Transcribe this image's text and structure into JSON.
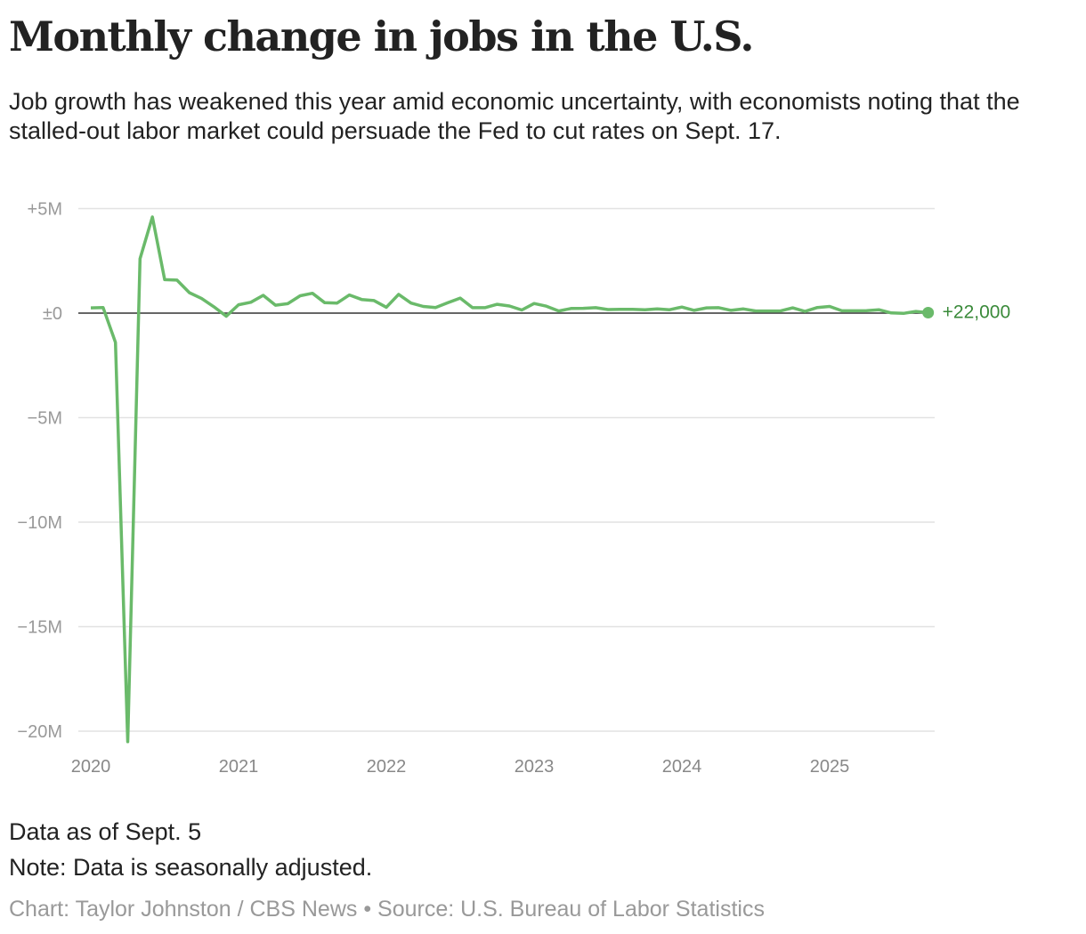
{
  "chart_data": {
    "type": "line",
    "title": "Monthly change in jobs in the U.S.",
    "subtitle": "Job growth has weakened this year amid economic uncertainty, with economists noting that the stalled-out labor market could persuade the Fed to cut rates on Sept. 17.",
    "xlabel": "",
    "ylabel": "",
    "ylim": [
      -20500,
      5000
    ],
    "yticks": [
      {
        "v": 5000,
        "label": "+5M"
      },
      {
        "v": 0,
        "label": "±0"
      },
      {
        "v": -5000,
        "label": "−5M"
      },
      {
        "v": -10000,
        "label": "−10M"
      },
      {
        "v": -15000,
        "label": "−15M"
      },
      {
        "v": -20000,
        "label": "−20M"
      }
    ],
    "xticks": [
      "2020",
      "2021",
      "2022",
      "2023",
      "2024",
      "2025"
    ],
    "start": "2020-01",
    "units": "thousands",
    "series": [
      {
        "name": "Monthly change in jobs",
        "color": "#6aba6a",
        "values": [
          250,
          270,
          -1400,
          -20500,
          2600,
          4600,
          1600,
          1580,
          980,
          700,
          300,
          -150,
          400,
          520,
          850,
          380,
          450,
          830,
          950,
          500,
          480,
          870,
          650,
          600,
          280,
          900,
          480,
          320,
          270,
          500,
          720,
          260,
          260,
          420,
          340,
          150,
          460,
          330,
          100,
          220,
          230,
          260,
          170,
          180,
          180,
          160,
          200,
          160,
          290,
          130,
          250,
          260,
          130,
          200,
          100,
          100,
          100,
          250,
          80,
          270,
          320,
          110,
          110,
          120,
          160,
          10,
          -13,
          79,
          22
        ]
      }
    ],
    "end_label": "+22,000",
    "grid": true
  },
  "notes": {
    "data_as_of": "Data as of Sept. 5",
    "note": "Note: Data is seasonally adjusted.",
    "credit": "Chart: Taylor Johnston / CBS News • Source: U.S. Bureau of Labor Statistics"
  }
}
